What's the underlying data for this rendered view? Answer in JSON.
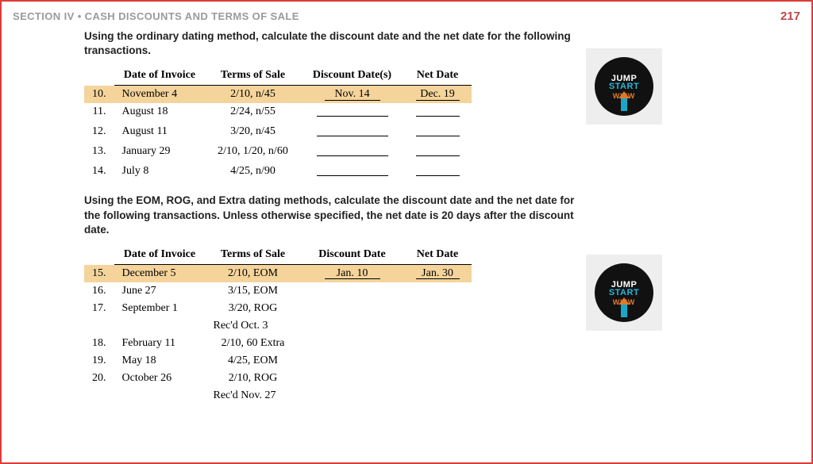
{
  "header": {
    "section_title": "SECTION IV • CASH DISCOUNTS AND TERMS OF SALE",
    "page_number": "217"
  },
  "colors": {
    "highlight_row": "#f5d49b",
    "page_number": "#b84a4a",
    "section_title": "#9a9a9a",
    "border": "#e03a3a",
    "badge_bg": "#111111",
    "badge_start": "#27b6d9",
    "badge_www": "#e07a2a",
    "badge_box": "#eeeeee"
  },
  "badge": {
    "line1": "JUMP",
    "line2": "START",
    "line3": "WWW"
  },
  "section1": {
    "instructions": "Using the ordinary dating method, calculate the discount date and the net date for the following transactions.",
    "columns": [
      "Date of Invoice",
      "Terms of Sale",
      "Discount Date(s)",
      "Net Date"
    ],
    "rows": [
      {
        "num": "10.",
        "date": "November 4",
        "terms": "2/10, n/45",
        "disc": "Nov. 14",
        "net": "Dec. 19",
        "highlight": true
      },
      {
        "num": "11.",
        "date": "August 18",
        "terms": "2/24, n/55",
        "disc": "",
        "net": ""
      },
      {
        "num": "12.",
        "date": "August 11",
        "terms": "3/20, n/45",
        "disc": "",
        "net": ""
      },
      {
        "num": "13.",
        "date": "January 29",
        "terms": "2/10, 1/20, n/60",
        "disc": "",
        "net": ""
      },
      {
        "num": "14.",
        "date": "July 8",
        "terms": "4/25, n/90",
        "disc": "",
        "net": ""
      }
    ]
  },
  "section2": {
    "instructions": "Using the EOM, ROG, and Extra dating methods, calculate the discount date and the net date for the following transactions. Unless otherwise specified, the net date is 20 days after the discount date.",
    "columns": [
      "Date of Invoice",
      "Terms of Sale",
      "Discount Date",
      "Net Date"
    ],
    "rows": [
      {
        "num": "15.",
        "date": "December 5",
        "terms": "2/10, EOM",
        "disc": "Jan. 10",
        "net": "Jan. 30",
        "highlight": true
      },
      {
        "num": "16.",
        "date": "June 27",
        "terms": "3/15, EOM"
      },
      {
        "num": "17.",
        "date": "September 1",
        "terms": "3/20, ROG",
        "terms2": "Rec'd Oct. 3"
      },
      {
        "num": "18.",
        "date": "February 11",
        "terms": "2/10, 60 Extra"
      },
      {
        "num": "19.",
        "date": "May 18",
        "terms": "4/25, EOM"
      },
      {
        "num": "20.",
        "date": "October 26",
        "terms": "2/10, ROG",
        "terms2": "Rec'd Nov. 27"
      }
    ]
  }
}
